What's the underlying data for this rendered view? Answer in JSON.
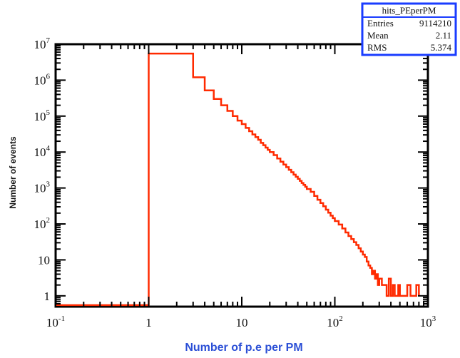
{
  "chart_data": {
    "type": "histogram",
    "title": "",
    "xlabel": "Number of p.e per PM",
    "ylabel": "Number of events",
    "xscale": "log",
    "yscale": "log",
    "xlim": [
      0.1,
      1000
    ],
    "ylim": [
      0.5,
      10000000
    ],
    "grid": false,
    "line_color": "#ff2a00",
    "stats_color": "#1a3cff",
    "x_ticks": [
      {
        "base": "10",
        "exp": "-1",
        "value": 0.1
      },
      {
        "base": "1",
        "exp": "",
        "value": 1
      },
      {
        "base": "10",
        "exp": "",
        "value": 10
      },
      {
        "base": "10",
        "exp": "2",
        "value": 100
      },
      {
        "base": "10",
        "exp": "3",
        "value": 1000
      }
    ],
    "y_ticks": [
      {
        "base": "1",
        "exp": "",
        "value": 1
      },
      {
        "base": "10",
        "exp": "",
        "value": 10
      },
      {
        "base": "10",
        "exp": "2",
        "value": 100
      },
      {
        "base": "10",
        "exp": "3",
        "value": 1000
      },
      {
        "base": "10",
        "exp": "4",
        "value": 10000
      },
      {
        "base": "10",
        "exp": "5",
        "value": 100000
      },
      {
        "base": "10",
        "exp": "6",
        "value": 1000000
      },
      {
        "base": "10",
        "exp": "7",
        "value": 10000000
      }
    ],
    "stats": {
      "name": "hits_PEperPM",
      "rows": [
        {
          "label": "Entries",
          "value": "9114210"
        },
        {
          "label": "Mean",
          "value": "2.11"
        },
        {
          "label": "RMS",
          "value": "5.374"
        }
      ]
    },
    "bins": {
      "x": [
        1,
        2,
        3,
        4,
        5,
        6,
        7,
        8,
        9,
        10,
        11,
        12,
        13,
        14,
        15,
        16,
        17,
        18,
        19,
        20,
        22,
        24,
        26,
        28,
        30,
        32,
        34,
        36,
        38,
        40,
        42,
        44,
        46,
        48,
        50,
        55,
        60,
        65,
        70,
        75,
        80,
        85,
        90,
        95,
        100,
        110,
        120,
        130,
        140,
        150,
        160,
        170,
        180,
        190,
        200,
        210,
        220,
        230,
        240,
        250,
        260,
        270,
        280,
        290,
        300,
        320,
        340,
        360,
        380,
        400,
        420,
        440,
        460,
        480,
        500,
        550,
        600,
        650,
        700,
        750,
        800
      ],
      "y": [
        5500000,
        5500000,
        1200000,
        520000,
        300000,
        200000,
        140000,
        100000,
        75000,
        60000,
        47000,
        38000,
        31000,
        26000,
        22000,
        18000,
        15500,
        13300,
        11500,
        10000,
        8200,
        6600,
        5400,
        4500,
        3800,
        3200,
        2750,
        2350,
        2050,
        1800,
        1580,
        1380,
        1220,
        1080,
        940,
        780,
        600,
        470,
        380,
        310,
        250,
        205,
        170,
        145,
        120,
        96,
        75,
        58,
        46,
        38,
        31,
        26,
        21,
        17,
        14,
        12,
        9,
        7,
        6,
        4,
        5,
        3,
        4,
        2,
        3,
        2,
        2,
        1,
        3,
        1,
        2,
        1,
        1,
        2,
        1,
        1,
        2,
        1,
        1,
        2,
        1
      ],
      "underflow_level": 0.55,
      "underflow_from": 0.1,
      "underflow_to": 1
    }
  }
}
